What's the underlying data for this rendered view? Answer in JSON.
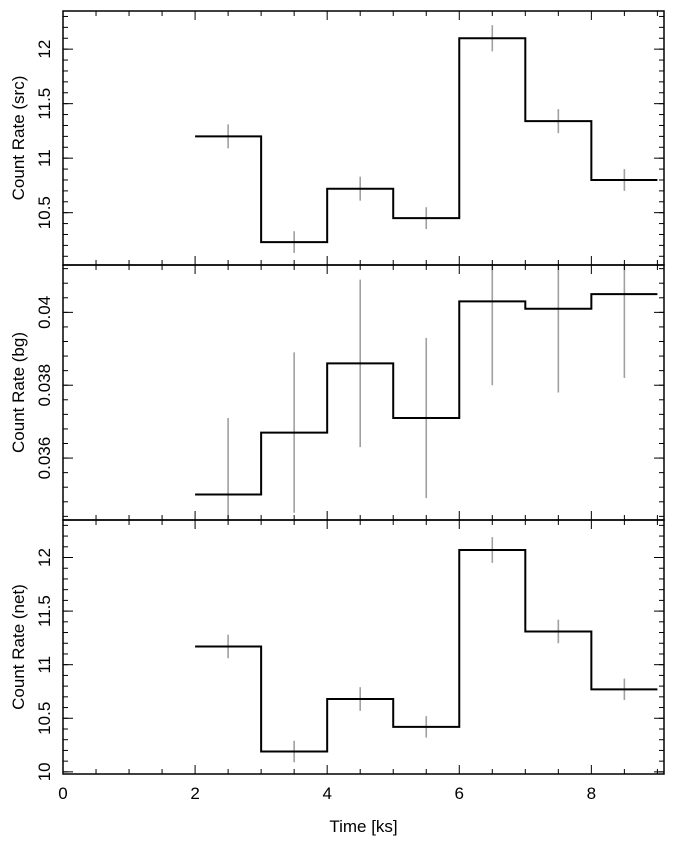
{
  "chart_data": [
    {
      "type": "line",
      "ylabel": "Count Rate (src)",
      "xlabel": "",
      "xlim": [
        0,
        9.1
      ],
      "ylim": [
        10.02,
        12.35
      ],
      "xticks": [
        0,
        2,
        4,
        6,
        8
      ],
      "xtick_labels": [],
      "yticks": [
        10.5,
        11,
        11.5,
        12
      ],
      "ytick_labels": [
        "10.5",
        "11",
        "11.5",
        "12"
      ],
      "bins": [
        [
          2,
          3
        ],
        [
          3,
          4
        ],
        [
          4,
          5
        ],
        [
          5,
          6
        ],
        [
          6,
          7
        ],
        [
          7,
          8
        ],
        [
          8,
          9
        ]
      ],
      "x": [
        2.5,
        3.5,
        4.5,
        5.5,
        6.5,
        7.5,
        8.5
      ],
      "values": [
        11.2,
        10.23,
        10.72,
        10.45,
        12.1,
        11.34,
        10.8
      ],
      "error": [
        0.11,
        0.1,
        0.11,
        0.1,
        0.12,
        0.11,
        0.1
      ]
    },
    {
      "type": "line",
      "ylabel": "Count Rate (bg)",
      "xlabel": "",
      "xlim": [
        0,
        9.1
      ],
      "ylim": [
        0.0343,
        0.0413
      ],
      "xticks": [
        0,
        2,
        4,
        6,
        8
      ],
      "xtick_labels": [],
      "yticks": [
        0.036,
        0.038,
        0.04
      ],
      "ytick_labels": [
        "0.036",
        "0.038",
        "0.04"
      ],
      "bins": [
        [
          2,
          3
        ],
        [
          3,
          4
        ],
        [
          4,
          5
        ],
        [
          5,
          6
        ],
        [
          6,
          7
        ],
        [
          7,
          8
        ],
        [
          8,
          9
        ]
      ],
      "x": [
        2.5,
        3.5,
        4.5,
        5.5,
        6.5,
        7.5,
        8.5
      ],
      "values": [
        0.035,
        0.0367,
        0.0386,
        0.0371,
        0.0403,
        0.0401,
        0.0405
      ],
      "error": [
        0.0021,
        0.0022,
        0.0023,
        0.0022,
        0.0023,
        0.0023,
        0.0023
      ]
    },
    {
      "type": "line",
      "ylabel": "Count Rate (net)",
      "xlabel": "Time [ks]",
      "xlim": [
        0,
        9.1
      ],
      "ylim": [
        9.98,
        12.35
      ],
      "xticks": [
        0,
        2,
        4,
        6,
        8
      ],
      "xtick_labels": [
        "0",
        "2",
        "4",
        "6",
        "8"
      ],
      "yticks": [
        10,
        10.5,
        11,
        11.5,
        12
      ],
      "ytick_labels": [
        "10",
        "10.5",
        "11",
        "11.5",
        "12"
      ],
      "bins": [
        [
          2,
          3
        ],
        [
          3,
          4
        ],
        [
          4,
          5
        ],
        [
          5,
          6
        ],
        [
          6,
          7
        ],
        [
          7,
          8
        ],
        [
          8,
          9
        ]
      ],
      "x": [
        2.5,
        3.5,
        4.5,
        5.5,
        6.5,
        7.5,
        8.5
      ],
      "values": [
        11.17,
        10.19,
        10.68,
        10.42,
        12.07,
        11.31,
        10.77
      ],
      "error": [
        0.11,
        0.1,
        0.11,
        0.1,
        0.12,
        0.11,
        0.1
      ]
    }
  ]
}
